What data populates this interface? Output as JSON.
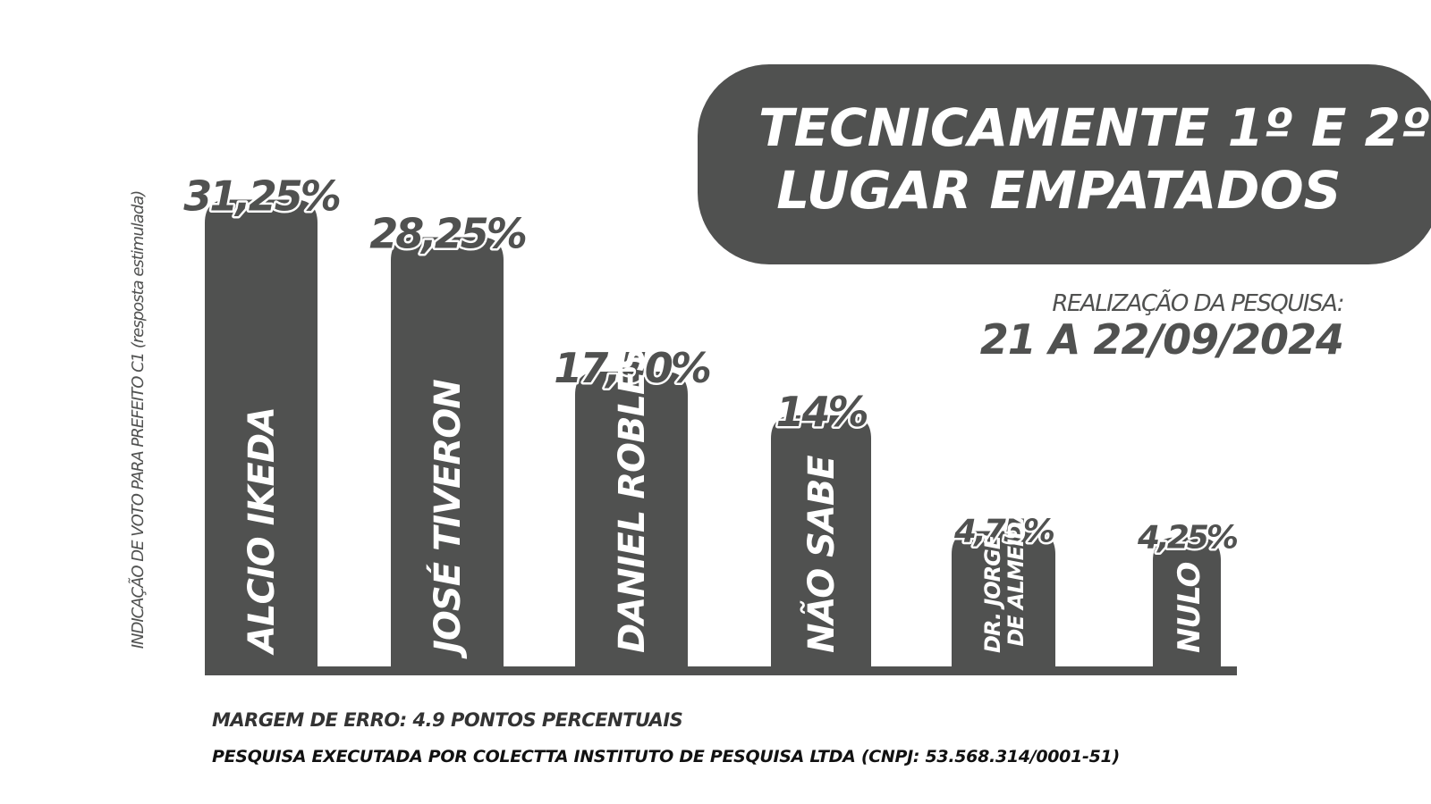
{
  "chart_data": {
    "type": "bar",
    "title": "TECNICAMENTE 1º E 2º LUGAR EMPATADOS",
    "y_label": "INDICAÇÃO DE VOTO PARA PREFEITO C1 (resposta estimulada)",
    "date_label": "REALIZAÇÃO DA PESQUISA:",
    "date": "21 A 22/09/2024",
    "notes": [
      "MARGEM DE ERRO: 4.9 PONTOS PERCENTUAIS",
      "PESQUISA EXECUTADA POR COLECTTA INSTITUTO DE PESQUISA LTDA (CNPJ: 53.568.314/0001-51)"
    ],
    "categories": [
      "ALCIO IKEDA",
      "JOSÉ TIVERON",
      "DANIEL ROBLES",
      "NÃO SABE",
      "DR. JORGE DE ALMEIDA",
      "NULO"
    ],
    "values": [
      31.25,
      28.25,
      17.5,
      14,
      4.75,
      4.25
    ],
    "value_labels": [
      "31,25%",
      "28,25%",
      "17,50%",
      "14%",
      "4,75%",
      "4,25%"
    ],
    "color": "#505150"
  }
}
